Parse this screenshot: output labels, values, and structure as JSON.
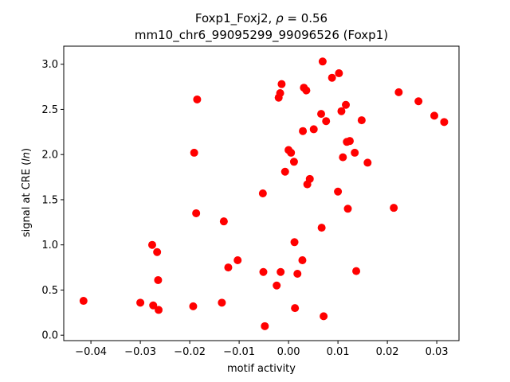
{
  "chart_data": {
    "type": "scatter",
    "title": "Foxp1_Foxj2, ρ = 0.56",
    "title_parts": {
      "name": "Foxp1_Foxj2, ",
      "rho_symbol": "ρ",
      "rho_value": " = 0.56"
    },
    "subtitle": "mm10_chr6_99095299_99096526 (Foxp1)",
    "xlabel": "motif activity",
    "ylabel_parts": {
      "prefix": "signal at CRE (",
      "italic": "ln",
      "suffix": ")"
    },
    "xlim": [
      -0.0455,
      0.0345
    ],
    "ylim": [
      -0.06,
      3.2
    ],
    "x_ticks": [
      -0.04,
      -0.03,
      -0.02,
      -0.01,
      0.0,
      0.01,
      0.02,
      0.03
    ],
    "x_tick_labels": [
      "−0.04",
      "−0.03",
      "−0.02",
      "−0.01",
      "0.00",
      "0.01",
      "0.02",
      "0.03"
    ],
    "y_ticks": [
      0.0,
      0.5,
      1.0,
      1.5,
      2.0,
      2.5,
      3.0
    ],
    "y_tick_labels": [
      "0.0",
      "0.5",
      "1.0",
      "1.5",
      "2.0",
      "2.5",
      "3.0"
    ],
    "grid": false,
    "marker_color": "#ff0000",
    "points": [
      {
        "x": -0.0415,
        "y": 0.38
      },
      {
        "x": -0.03,
        "y": 0.36
      },
      {
        "x": -0.0276,
        "y": 1.0
      },
      {
        "x": -0.0274,
        "y": 0.33
      },
      {
        "x": -0.0266,
        "y": 0.92
      },
      {
        "x": -0.0264,
        "y": 0.61
      },
      {
        "x": -0.0263,
        "y": 0.28
      },
      {
        "x": -0.0193,
        "y": 0.32
      },
      {
        "x": -0.0191,
        "y": 2.02
      },
      {
        "x": -0.0187,
        "y": 1.35
      },
      {
        "x": -0.0185,
        "y": 2.61
      },
      {
        "x": -0.0135,
        "y": 0.36
      },
      {
        "x": -0.0131,
        "y": 1.26
      },
      {
        "x": -0.0122,
        "y": 0.75
      },
      {
        "x": -0.0103,
        "y": 0.83
      },
      {
        "x": -0.0052,
        "y": 1.57
      },
      {
        "x": -0.0051,
        "y": 0.7
      },
      {
        "x": -0.0048,
        "y": 0.1
      },
      {
        "x": -0.0024,
        "y": 0.55
      },
      {
        "x": -0.002,
        "y": 2.63
      },
      {
        "x": -0.0017,
        "y": 2.68
      },
      {
        "x": -0.0016,
        "y": 0.7
      },
      {
        "x": -0.0014,
        "y": 2.78
      },
      {
        "x": -0.0007,
        "y": 1.81
      },
      {
        "x": 0.0,
        "y": 2.05
      },
      {
        "x": 0.0005,
        "y": 2.02
      },
      {
        "x": 0.0011,
        "y": 1.92
      },
      {
        "x": 0.0012,
        "y": 1.03
      },
      {
        "x": 0.0013,
        "y": 0.3
      },
      {
        "x": 0.0018,
        "y": 0.68
      },
      {
        "x": 0.0028,
        "y": 0.83
      },
      {
        "x": 0.0029,
        "y": 2.26
      },
      {
        "x": 0.0031,
        "y": 2.74
      },
      {
        "x": 0.0036,
        "y": 2.71
      },
      {
        "x": 0.0038,
        "y": 1.67
      },
      {
        "x": 0.0043,
        "y": 1.73
      },
      {
        "x": 0.0051,
        "y": 2.28
      },
      {
        "x": 0.0066,
        "y": 2.45
      },
      {
        "x": 0.0067,
        "y": 1.19
      },
      {
        "x": 0.0069,
        "y": 3.03
      },
      {
        "x": 0.0071,
        "y": 0.21
      },
      {
        "x": 0.0076,
        "y": 2.37
      },
      {
        "x": 0.0088,
        "y": 2.85
      },
      {
        "x": 0.01,
        "y": 1.59
      },
      {
        "x": 0.0102,
        "y": 2.9
      },
      {
        "x": 0.0107,
        "y": 2.48
      },
      {
        "x": 0.011,
        "y": 1.97
      },
      {
        "x": 0.0116,
        "y": 2.55
      },
      {
        "x": 0.0118,
        "y": 2.14
      },
      {
        "x": 0.012,
        "y": 1.4
      },
      {
        "x": 0.0124,
        "y": 2.15
      },
      {
        "x": 0.0134,
        "y": 2.02
      },
      {
        "x": 0.0137,
        "y": 0.71
      },
      {
        "x": 0.0148,
        "y": 2.38
      },
      {
        "x": 0.016,
        "y": 1.91
      },
      {
        "x": 0.0213,
        "y": 1.41
      },
      {
        "x": 0.0223,
        "y": 2.69
      },
      {
        "x": 0.0263,
        "y": 2.59
      },
      {
        "x": 0.0295,
        "y": 2.43
      },
      {
        "x": 0.0315,
        "y": 2.36
      }
    ]
  }
}
